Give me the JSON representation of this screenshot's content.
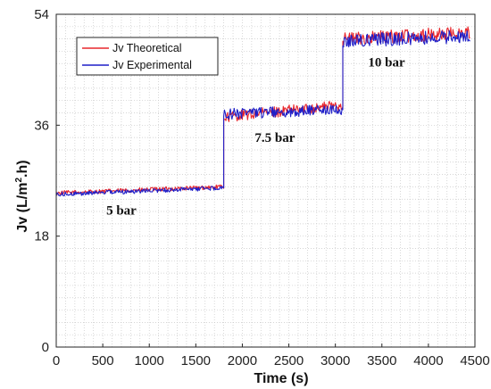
{
  "chart_data": {
    "type": "line",
    "title": "",
    "xlabel": "Time (s)",
    "ylabel_main": "Jv (L/m",
    "ylabel_sup": "2",
    "ylabel_end": ".h)",
    "xlim": [
      0,
      4500
    ],
    "ylim": [
      0,
      54
    ],
    "xticks": [
      0,
      500,
      1000,
      1500,
      2000,
      2500,
      3000,
      3500,
      4000,
      4500
    ],
    "xtick_labels": [
      "0",
      "500",
      "1000",
      "1500",
      "2000",
      "2500",
      "3000",
      "3500",
      "4000",
      "4500"
    ],
    "yticks": [
      0,
      18,
      36,
      54
    ],
    "ytick_labels": [
      "0",
      "18",
      "36",
      "54"
    ],
    "grid": true,
    "legend_position": "top-left",
    "series": [
      {
        "name": "Jv Theoretical",
        "color": "#e8262c",
        "segments": [
          {
            "x_start": 0,
            "x_end": 1800,
            "y_start": 25.0,
            "y_end": 26.0
          },
          {
            "x_start": 1800,
            "x_end": 3080,
            "y_start": 37.3,
            "y_end": 39.3
          },
          {
            "x_start": 3080,
            "x_end": 4450,
            "y_start": 50.0,
            "y_end": 51.0
          }
        ]
      },
      {
        "name": "Jv Experimental",
        "color": "#1f1fc8",
        "segments": [
          {
            "x_start": 0,
            "x_end": 1800,
            "y_start": 24.8,
            "y_end": 25.8
          },
          {
            "x_start": 1800,
            "x_end": 3080,
            "y_start": 37.8,
            "y_end": 38.5
          },
          {
            "x_start": 3080,
            "x_end": 4450,
            "y_start": 49.7,
            "y_end": 50.4
          }
        ]
      }
    ],
    "annotations": [
      {
        "text": "5 bar",
        "x": 700,
        "y": 21.5
      },
      {
        "text": "7.5 bar",
        "x": 2350,
        "y": 33.3
      },
      {
        "text": "10 bar",
        "x": 3550,
        "y": 45.5
      }
    ]
  }
}
